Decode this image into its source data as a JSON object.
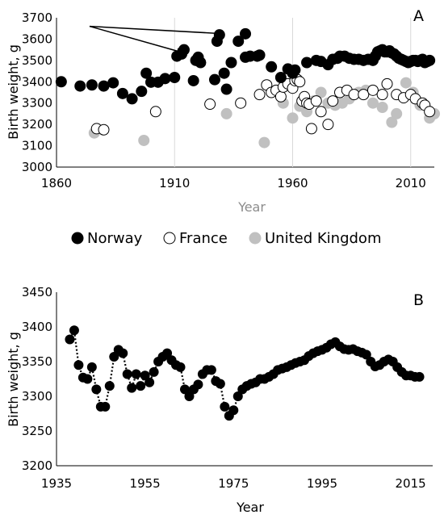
{
  "chart_data": [
    {
      "type": "scatter",
      "panel_label": "A",
      "xlabel": "Year",
      "ylabel": "Birth weight, g",
      "xlim": [
        1860,
        2020
      ],
      "ylim": [
        3000,
        3700
      ],
      "x_ticks": [
        1860,
        1910,
        1960,
        2010
      ],
      "y_ticks": [
        3000,
        3100,
        3200,
        3300,
        3400,
        3500,
        3600,
        3700
      ],
      "xlabel_color": "#8c8c8c",
      "grid": "vertical",
      "legend_position": "bottom",
      "arrows": {
        "from": [
          1874,
          3660
        ],
        "to": [
          [
            1931,
            3625
          ],
          [
            1914,
            3535
          ]
        ]
      },
      "series": [
        {
          "name": "Norway",
          "marker": "filled",
          "color": "#000000",
          "x": [
            1862,
            1870,
            1875,
            1880,
            1884,
            1888,
            1892,
            1896,
            1898,
            1900,
            1903,
            1906,
            1910,
            1911,
            1913,
            1914,
            1918,
            1919,
            1920,
            1921,
            1927,
            1928,
            1929,
            1931,
            1932,
            1934,
            1937,
            1940,
            1940,
            1942,
            1945,
            1946,
            1951,
            1955,
            1958,
            1960,
            1961,
            1966,
            1970,
            1972,
            1975,
            1977,
            1979,
            1980,
            1982,
            1984,
            1986,
            1988,
            1990,
            1992,
            1994,
            1995,
            1996,
            1997,
            1998,
            1999,
            2000,
            2001,
            2002,
            2003,
            2004,
            2005,
            2006,
            2007,
            2008,
            2009,
            2010,
            2011,
            2012,
            2013,
            2014,
            2015,
            2016,
            2017,
            2018
          ],
          "y": [
            3400,
            3380,
            3385,
            3380,
            3395,
            3345,
            3320,
            3355,
            3440,
            3398,
            3398,
            3415,
            3420,
            3520,
            3530,
            3550,
            3405,
            3500,
            3515,
            3490,
            3410,
            3590,
            3620,
            3440,
            3365,
            3490,
            3590,
            3625,
            3515,
            3520,
            3520,
            3525,
            3470,
            3420,
            3460,
            3440,
            3455,
            3490,
            3500,
            3495,
            3480,
            3505,
            3510,
            3520,
            3520,
            3510,
            3505,
            3505,
            3500,
            3505,
            3500,
            3520,
            3540,
            3545,
            3550,
            3540,
            3540,
            3545,
            3535,
            3530,
            3520,
            3510,
            3505,
            3500,
            3495,
            3490,
            3495,
            3500,
            3500,
            3495,
            3500,
            3505,
            3490,
            3495,
            3500
          ]
        },
        {
          "name": "France",
          "marker": "open",
          "color": "#000000",
          "x": [
            1877,
            1880,
            1902,
            1925,
            1938,
            1946,
            1949,
            1951,
            1953,
            1955,
            1956,
            1958,
            1960,
            1961,
            1962,
            1963,
            1964,
            1965,
            1966,
            1967,
            1968,
            1970,
            1972,
            1975,
            1977,
            1980,
            1983,
            1986,
            1990,
            1994,
            1998,
            2000,
            2004,
            2007,
            2010,
            2012,
            2015,
            2016,
            2018
          ],
          "y": [
            3180,
            3175,
            3260,
            3295,
            3300,
            3340,
            3385,
            3350,
            3360,
            3330,
            3375,
            3390,
            3370,
            3405,
            3410,
            3400,
            3310,
            3330,
            3300,
            3295,
            3180,
            3310,
            3260,
            3200,
            3310,
            3350,
            3360,
            3340,
            3340,
            3360,
            3340,
            3390,
            3340,
            3325,
            3340,
            3320,
            3300,
            3290,
            3260
          ]
        },
        {
          "name": "United Kingdom",
          "marker": "filled",
          "color": "#c0c0c0",
          "x": [
            1876,
            1897,
            1932,
            1948,
            1956,
            1960,
            1963,
            1966,
            1969,
            1972,
            1975,
            1978,
            1981,
            1984,
            1988,
            1991,
            1994,
            1998,
            2002,
            2004,
            2008,
            2011,
            2014,
            2018,
            2020
          ],
          "y": [
            3160,
            3125,
            3250,
            3115,
            3300,
            3230,
            3285,
            3260,
            3310,
            3350,
            3300,
            3290,
            3300,
            3320,
            3350,
            3360,
            3300,
            3280,
            3210,
            3250,
            3395,
            3350,
            3290,
            3230,
            3250
          ]
        }
      ]
    },
    {
      "type": "line",
      "panel_label": "B",
      "xlabel": "Year",
      "ylabel": "Birth weight, g",
      "xlim": [
        1935,
        2020
      ],
      "ylim": [
        3200,
        3450
      ],
      "x_ticks": [
        1935,
        1955,
        1975,
        1995,
        2015
      ],
      "y_ticks": [
        3200,
        3250,
        3300,
        3350,
        3400,
        3450
      ],
      "grid": false,
      "line_style": "dotted",
      "color": "#000000",
      "x": [
        1938,
        1939,
        1940,
        1941,
        1942,
        1943,
        1944,
        1945,
        1946,
        1947,
        1948,
        1949,
        1950,
        1951,
        1952,
        1953,
        1954,
        1955,
        1956,
        1957,
        1958,
        1959,
        1960,
        1961,
        1962,
        1963,
        1964,
        1965,
        1966,
        1967,
        1968,
        1969,
        1970,
        1971,
        1972,
        1973,
        1974,
        1975,
        1976,
        1977,
        1978,
        1979,
        1980,
        1981,
        1982,
        1983,
        1984,
        1985,
        1986,
        1987,
        1988,
        1989,
        1990,
        1991,
        1992,
        1993,
        1994,
        1995,
        1996,
        1997,
        1998,
        1999,
        2000,
        2001,
        2002,
        2003,
        2004,
        2005,
        2006,
        2007,
        2008,
        2009,
        2010,
        2011,
        2012,
        2013,
        2014,
        2015,
        2016,
        2017
      ],
      "y": [
        3382,
        3395,
        3345,
        3327,
        3325,
        3342,
        3310,
        3285,
        3285,
        3315,
        3357,
        3367,
        3362,
        3332,
        3312,
        3332,
        3315,
        3330,
        3320,
        3335,
        3350,
        3357,
        3362,
        3352,
        3345,
        3342,
        3310,
        3300,
        3310,
        3317,
        3332,
        3338,
        3338,
        3322,
        3318,
        3285,
        3272,
        3280,
        3300,
        3310,
        3315,
        3318,
        3320,
        3325,
        3325,
        3328,
        3332,
        3338,
        3340,
        3342,
        3345,
        3348,
        3350,
        3352,
        3358,
        3362,
        3365,
        3367,
        3370,
        3375,
        3378,
        3372,
        3368,
        3367,
        3368,
        3365,
        3363,
        3360,
        3350,
        3343,
        3345,
        3350,
        3353,
        3350,
        3342,
        3335,
        3330,
        3330,
        3328,
        3328
      ]
    }
  ]
}
